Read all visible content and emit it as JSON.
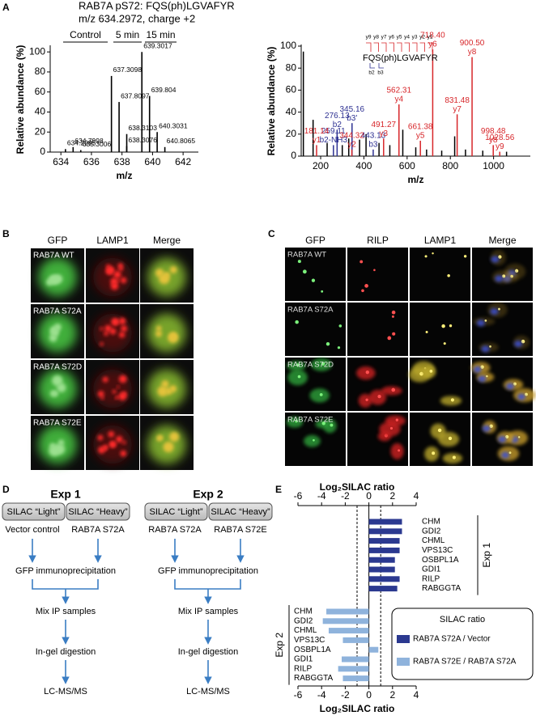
{
  "panel_a": {
    "label": "A",
    "title": "RAB7A pS72: FQS(ph)LGVAFYR",
    "subtitle": "m/z 634.2972, charge +2",
    "ms1": {
      "type": "spectrum",
      "xlabel": "m/z",
      "ylabel": "Relative abundance (%)",
      "xlim": [
        633.3,
        643
      ],
      "xticks": [
        634,
        636,
        638,
        640,
        642
      ],
      "ylim": [
        0,
        105
      ],
      "yticks": [
        0,
        20,
        40,
        60,
        80,
        100
      ],
      "color": "#000000",
      "sections": [
        "Control",
        "5 min",
        "15 min"
      ],
      "x": [
        634.2995,
        634.7998,
        635.3006,
        637.3098,
        637.8097,
        638.3103,
        638.3076,
        639.3017,
        639.804,
        640.3031,
        640.8065
      ],
      "values": [
        3,
        5,
        2,
        76,
        50,
        18,
        6,
        100,
        56,
        20,
        5
      ]
    },
    "ms2": {
      "type": "spectrum",
      "xlabel": "m/z",
      "ylabel": "Relative abundance (%)",
      "xlim": [
        110,
        1170
      ],
      "xticks": [
        200,
        400,
        600,
        800,
        1000
      ],
      "ylim": [
        0,
        100
      ],
      "yticks": [
        0,
        20,
        40,
        60,
        80,
        100
      ],
      "fragment_map": {
        "sequence": "FQS(ph)LGVAFYR",
        "y_ions": [
          "y9",
          "y8",
          "y7",
          "y6",
          "y5",
          "y4",
          "y3",
          "y2",
          "y1"
        ],
        "b_ions": [
          "b2",
          "b3"
        ]
      },
      "other_peaks": {
        "color": "#000000",
        "x": [
          120,
          165,
          230,
          300,
          330,
          380,
          410,
          470,
          520,
          580,
          640,
          690,
          760,
          820,
          870,
          950,
          1060
        ],
        "values": [
          95,
          33,
          12,
          10,
          16,
          15,
          20,
          12,
          10,
          24,
          8,
          6,
          5,
          18,
          6,
          5,
          4
        ]
      },
      "b_ions": {
        "color": "#2e3192",
        "x": [
          259.11,
          276.13,
          345.16,
          443.13
        ],
        "x_labels": [
          "259.11",
          "276.13",
          "345.16",
          "443.13"
        ],
        "ions": [
          "b2-NH3",
          "b2",
          "b3'",
          "b3"
        ],
        "values": [
          10,
          24,
          30,
          6
        ]
      },
      "y_ions": {
        "color": "#d7262a",
        "x": [
          181.14,
          344.32,
          491.27,
          562.31,
          661.38,
          718.4,
          831.48,
          900.5,
          998.48,
          1028.56
        ],
        "x_labels": [
          "181.14",
          "344.32",
          "491.27",
          "562.31",
          "661.38",
          "718.40",
          "831.48",
          "900.50",
          "998.48",
          "1028.56"
        ],
        "ions": [
          "y1",
          "y2",
          "y3",
          "y4",
          "y5",
          "y6",
          "y7",
          "y8",
          "y8",
          "y9"
        ],
        "values": [
          10,
          6,
          16,
          47,
          14,
          97,
          38,
          90,
          10,
          4
        ]
      }
    }
  },
  "panel_b": {
    "label": "B",
    "columns": [
      "GFP",
      "LAMP1",
      "Merge"
    ],
    "rows": [
      "RAB7A WT",
      "RAB7A S72A",
      "RAB7A S72D",
      "RAB7A S72E"
    ]
  },
  "panel_c": {
    "label": "C",
    "columns": [
      "GFP",
      "RILP",
      "LAMP1",
      "Merge"
    ],
    "rows": [
      "RAB7A WT",
      "RAB7A S72A",
      "RAB7A S72D",
      "RAB7A S72E"
    ]
  },
  "panel_d": {
    "label": "D",
    "experiments": [
      {
        "title": "Exp 1",
        "labels": [
          "SILAC “Light”",
          "SILAC “Heavy”"
        ],
        "samples": [
          "Vector control",
          "RAB7A S72A"
        ],
        "steps": [
          "GFP immunoprecipitation",
          "Mix IP samples",
          "In-gel digestion",
          "LC-MS/MS"
        ]
      },
      {
        "title": "Exp 2",
        "labels": [
          "SILAC “Light”",
          "SILAC “Heavy”"
        ],
        "samples": [
          "RAB7A S72A",
          "RAB7A S72E"
        ],
        "steps": [
          "GFP immunoprecipitation",
          "Mix IP samples",
          "In-gel digestion",
          "LC-MS/MS"
        ]
      }
    ]
  },
  "panel_e": {
    "label": "E",
    "type": "barh",
    "axis_label": "Log₂SILAC ratio",
    "xlim": [
      -6,
      4
    ],
    "xticks": [
      -6,
      -4,
      -2,
      0,
      2,
      4
    ],
    "thresholds": [
      -1,
      1
    ],
    "legend_title": "SILAC ratio",
    "series": [
      {
        "name": "RAB7A S72A / Vector",
        "group": "Exp 1",
        "color": "#2b3990",
        "categories": [
          "CHM",
          "GDI2",
          "CHML",
          "VPS13C",
          "OSBPL1A",
          "GDI1",
          "RILP",
          "RABGGTA"
        ],
        "values": [
          2.8,
          2.8,
          2.6,
          2.6,
          2.2,
          2.2,
          2.6,
          2.4
        ]
      },
      {
        "name": "RAB7A S72E / RAB7A S72A",
        "group": "Exp 2",
        "color": "#8fb3dc",
        "categories": [
          "CHM",
          "GDI2",
          "CHML",
          "VPS13C",
          "OSBPL1A",
          "GDI1",
          "RILP",
          "RABGGTA"
        ],
        "values": [
          -3.6,
          -3.9,
          -3.4,
          -2.2,
          0.8,
          -2.3,
          -2.6,
          -2.2
        ]
      }
    ]
  }
}
